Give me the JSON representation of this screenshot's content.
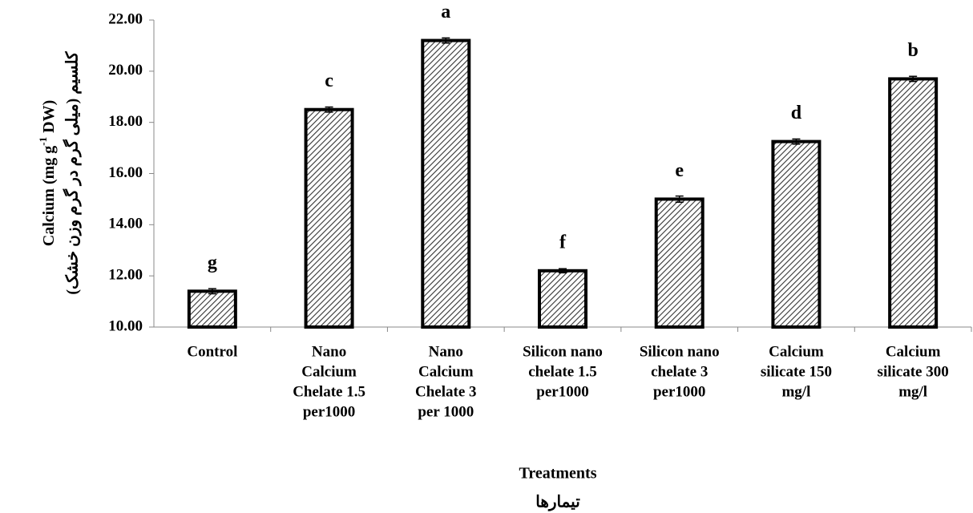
{
  "chart_data": {
    "type": "bar",
    "categories": [
      [
        "Control"
      ],
      [
        "Nano",
        "Calcium",
        "Chelate 1.5",
        "per1000"
      ],
      [
        "Nano",
        "Calcium",
        "Chelate 3",
        "per 1000"
      ],
      [
        "Silicon nano",
        "chelate 1.5",
        "per1000"
      ],
      [
        "Silicon nano",
        "chelate 3",
        "per1000"
      ],
      [
        "Calcium",
        "silicate 150",
        "mg/l"
      ],
      [
        "Calcium",
        "silicate 300",
        "mg/l"
      ]
    ],
    "values": [
      11.4,
      18.5,
      21.2,
      12.2,
      15.0,
      17.25,
      19.7
    ],
    "errors": [
      0.1,
      0.1,
      0.1,
      0.08,
      0.12,
      0.1,
      0.1
    ],
    "letters": [
      "g",
      "c",
      "a",
      "f",
      "e",
      "d",
      "b"
    ],
    "color": "#000000",
    "ylim": [
      10,
      22
    ],
    "yticks": [
      {
        "value": 10,
        "label": "10.00"
      },
      {
        "value": 12,
        "label": "12.00"
      },
      {
        "value": 14,
        "label": "14.00"
      },
      {
        "value": 16,
        "label": "16.00"
      },
      {
        "value": 18,
        "label": "18.00"
      },
      {
        "value": 20,
        "label": "20.00"
      },
      {
        "value": 22,
        "label": "22.00"
      }
    ],
    "y_label_parts": [
      "Calcium (mg g",
      "-1",
      " DW)"
    ],
    "y_label_fa": "کلسیم (میلی گرم در گرم وزن خشک)",
    "x_label": "Treatments",
    "x_label_fa": "تیمارها"
  }
}
